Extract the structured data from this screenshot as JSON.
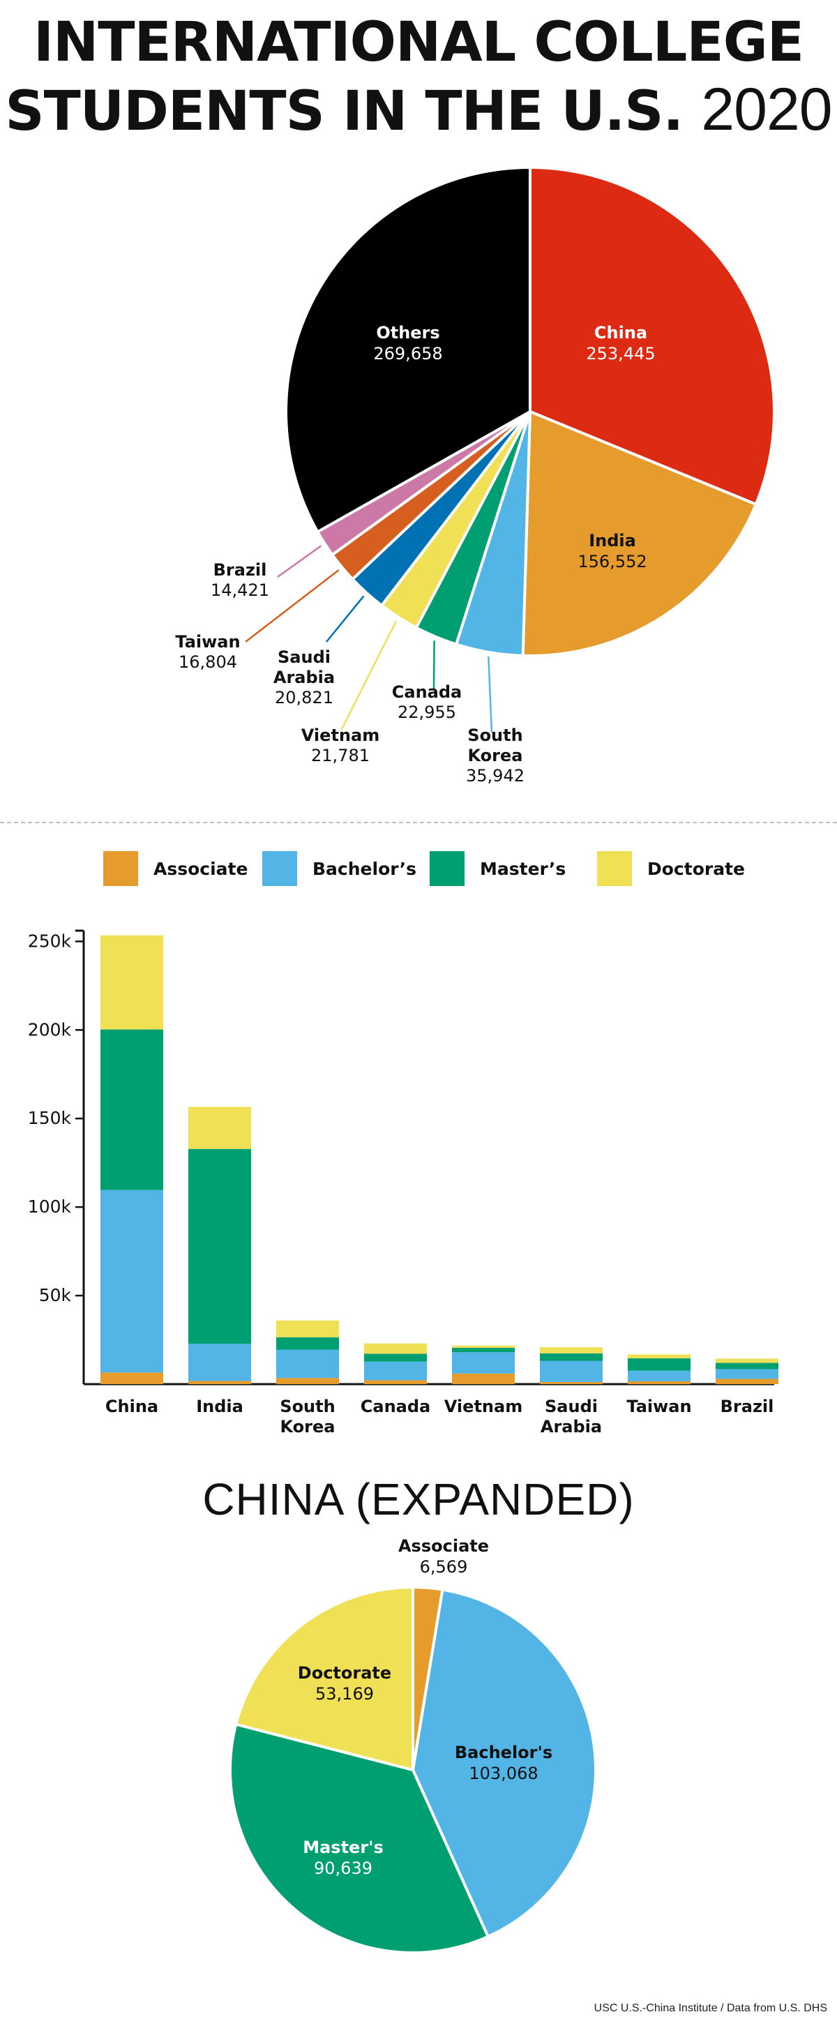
{
  "title": {
    "line1": "INTERNATIONAL COLLEGE",
    "line2": "STUDENTS IN THE U.S.",
    "year": "2020"
  },
  "colors": {
    "china": "#dd2a12",
    "india": "#e69c2c",
    "south_korea": "#52b5e6",
    "canada": "#009f72",
    "vietnam": "#efe055",
    "saudi_arabia": "#0071b2",
    "taiwan": "#d65e1e",
    "brazil": "#cc79a7",
    "others": "#000000",
    "associate": "#e69c2c",
    "bachelors": "#52b5e6",
    "masters": "#009f72",
    "doctorate": "#efe055"
  },
  "legend": [
    {
      "label": "Associate",
      "color": "#e69c2c"
    },
    {
      "label": "Bachelor’s",
      "color": "#52b5e6"
    },
    {
      "label": "Master’s",
      "color": "#009f72"
    },
    {
      "label": "Doctorate",
      "color": "#efe055"
    }
  ],
  "china_expanded_title": "CHINA (EXPANDED)",
  "source": "USC U.S.-China Institute / Data from U.S. DHS",
  "chart_data": [
    {
      "type": "pie",
      "title": "INTERNATIONAL COLLEGE STUDENTS IN THE U.S. 2020",
      "slices": [
        {
          "label": "China",
          "value": 253445,
          "display": "253,445",
          "color": "#dd2a12"
        },
        {
          "label": "India",
          "value": 156552,
          "display": "156,552",
          "color": "#e69c2c"
        },
        {
          "label": "South Korea",
          "value": 35942,
          "display": "35,942",
          "color": "#52b5e6"
        },
        {
          "label": "Canada",
          "value": 22955,
          "display": "22,955",
          "color": "#009f72"
        },
        {
          "label": "Vietnam",
          "value": 21781,
          "display": "21,781",
          "color": "#efe055"
        },
        {
          "label": "Saudi Arabia",
          "value": 20821,
          "display": "20,821",
          "color": "#0071b2"
        },
        {
          "label": "Taiwan",
          "value": 16804,
          "display": "16,804",
          "color": "#d65e1e"
        },
        {
          "label": "Brazil",
          "value": 14421,
          "display": "14,421",
          "color": "#cc79a7"
        },
        {
          "label": "Others",
          "value": 269658,
          "display": "269,658",
          "color": "#000000"
        }
      ]
    },
    {
      "type": "bar",
      "stacked": true,
      "categories": [
        "China",
        "India",
        "South Korea",
        "Canada",
        "Vietnam",
        "Saudi Arabia",
        "Taiwan",
        "Brazil"
      ],
      "series": [
        {
          "name": "Associate",
          "color": "#e69c2c",
          "values": [
            6569,
            1800,
            3500,
            2200,
            6000,
            1200,
            1600,
            3000
          ]
        },
        {
          "name": "Bachelor’s",
          "color": "#52b5e6",
          "values": [
            103068,
            21000,
            16000,
            10500,
            12000,
            12000,
            6000,
            5500
          ]
        },
        {
          "name": "Master’s",
          "color": "#009f72",
          "values": [
            90639,
            110000,
            7000,
            4500,
            2500,
            4200,
            7000,
            3500
          ]
        },
        {
          "name": "Doctorate",
          "color": "#efe055",
          "values": [
            53169,
            23752,
            9442,
            5755,
            1281,
            3421,
            2204,
            2421
          ]
        }
      ],
      "yticks": [
        "50k",
        "100k",
        "150k",
        "200k",
        "250k"
      ],
      "ytick_values": [
        50000,
        100000,
        150000,
        200000,
        250000
      ],
      "ylim": [
        0,
        260000
      ]
    },
    {
      "type": "pie",
      "title": "CHINA (EXPANDED)",
      "slices": [
        {
          "label": "Associate",
          "value": 6569,
          "display": "6,569",
          "color": "#e69c2c"
        },
        {
          "label": "Bachelor's",
          "value": 103068,
          "display": "103,068",
          "color": "#52b5e6"
        },
        {
          "label": "Master's",
          "value": 90639,
          "display": "90,639",
          "color": "#009f72"
        },
        {
          "label": "Doctorate",
          "value": 53169,
          "display": "53,169",
          "color": "#efe055"
        }
      ]
    }
  ]
}
